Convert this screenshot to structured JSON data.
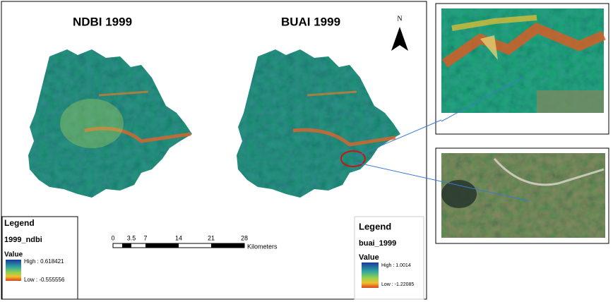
{
  "maps": [
    {
      "title": "NDBI 1999",
      "legend": {
        "heading": "Legend",
        "layer": "1999_ndbi",
        "field": "Value",
        "high": "High : 0.618421",
        "low": "Low : -0.555556"
      }
    },
    {
      "title": "BUAI 1999",
      "legend": {
        "heading": "Legend",
        "layer": "buai_1999",
        "field": "Value",
        "high": "High : 1.0014",
        "low": "Low : -1.22085"
      }
    }
  ],
  "north_arrow": "N",
  "scale_bar": {
    "labels": [
      "0",
      "3.5",
      "7",
      "14",
      "21",
      "28"
    ],
    "unit": "Kilometers"
  }
}
